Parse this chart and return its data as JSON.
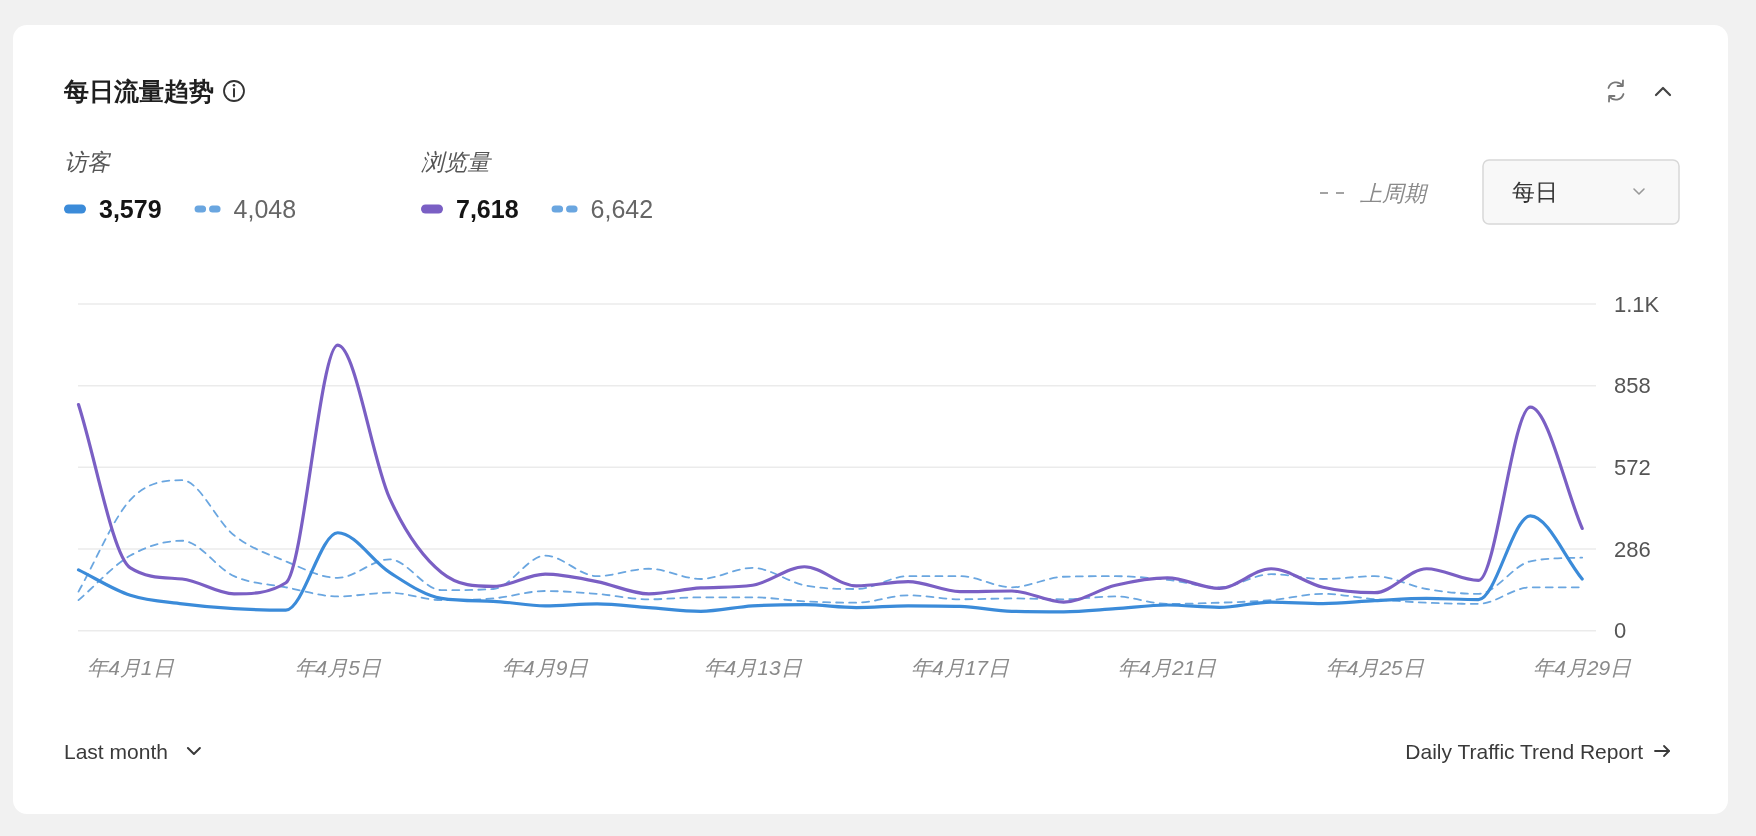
{
  "chart_data": {
    "type": "line",
    "title": "每日流量趋势",
    "categories": [
      null,
      "年4月1日",
      null,
      null,
      null,
      "年4月5日",
      null,
      null,
      null,
      "年4月9日",
      null,
      null,
      null,
      "年4月13日",
      null,
      null,
      null,
      "年4月17日",
      null,
      null,
      null,
      "年4月21日",
      null,
      null,
      null,
      "年4月25日",
      null,
      null,
      null,
      "年4月29日"
    ],
    "series": [
      {
        "name": "3,579",
        "color": "#3b8bd9",
        "values": [
          213,
          124,
          94,
          77,
          72,
          343,
          204,
          113,
          103,
          87,
          94,
          81,
          68,
          87,
          91,
          81,
          87,
          85,
          68,
          66,
          77,
          90,
          82,
          100,
          95,
          105,
          113,
          109,
          402,
          181
        ]
      },
      {
        "name": "4,048",
        "color": "#6aa6e0",
        "line_style": "dashed",
        "values": [
          107,
          263,
          315,
          191,
          152,
          120,
          133,
          107,
          113,
          139,
          129,
          110,
          117,
          117,
          103,
          98,
          124,
          110,
          113,
          110,
          120,
          94,
          98,
          107,
          129,
          110,
          98,
          94,
          152,
          152
        ]
      },
      {
        "name": "7,618",
        "color": "#7a5fc4",
        "values": [
          792,
          220,
          181,
          129,
          168,
          1000,
          464,
          204,
          155,
          198,
          172,
          129,
          150,
          159,
          224,
          157,
          172,
          137,
          139,
          100,
          159,
          185,
          148,
          217,
          152,
          133,
          217,
          176,
          783,
          358
        ]
      },
      {
        "name": "6,642",
        "color": "#6aa6e0",
        "line_style": "dashed",
        "values": [
          137,
          458,
          527,
          334,
          243,
          185,
          250,
          142,
          146,
          263,
          191,
          217,
          181,
          220,
          159,
          146,
          191,
          191,
          152,
          189,
          191,
          178,
          152,
          198,
          181,
          191,
          146,
          129,
          243,
          256
        ]
      }
    ],
    "ylim": [
      0,
      1144
    ],
    "yticks": [
      0,
      286,
      572,
      858,
      {
        "value": 1144,
        "label": "1.1K"
      }
    ],
    "grid": "y",
    "legend": "top left",
    "line_style": "solid",
    "annotations": [
      "访客",
      "浏览量",
      "上周期",
      "每日",
      "Last month",
      "Daily Traffic Trend Report"
    ]
  }
}
